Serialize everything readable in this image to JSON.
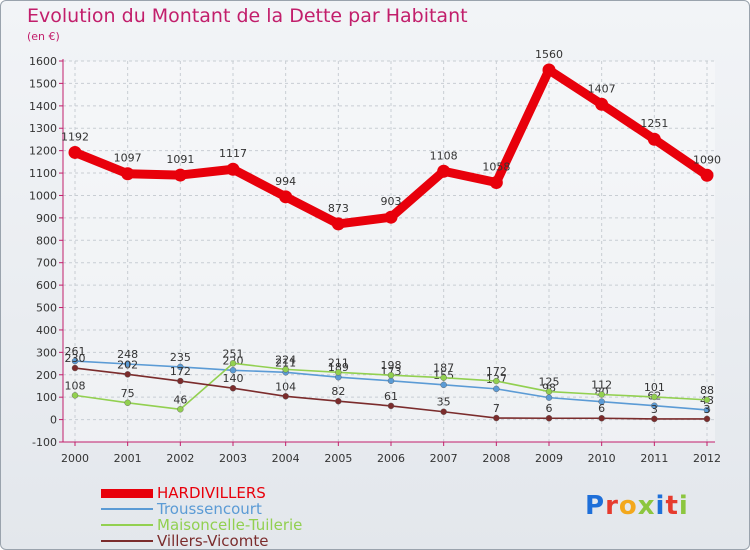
{
  "chart_data": {
    "type": "line",
    "title": "Evolution du Montant de la Dette par Habitant",
    "subtitle": "(en €)",
    "x": [
      "2000",
      "2001",
      "2002",
      "2003",
      "2004",
      "2005",
      "2006",
      "2007",
      "2008",
      "2009",
      "2010",
      "2011",
      "2012"
    ],
    "ylim": [
      -100,
      1600
    ],
    "yticks": [
      -100,
      0,
      100,
      200,
      300,
      400,
      500,
      600,
      700,
      800,
      900,
      1000,
      1100,
      1200,
      1300,
      1400,
      1500,
      1600
    ],
    "grid": true,
    "series": [
      {
        "name": "HARDIVILLERS",
        "color": "#e8000b",
        "values": [
          1192,
          1097,
          1091,
          1117,
          994,
          873,
          903,
          1108,
          1058,
          1560,
          1407,
          1251,
          1090
        ],
        "labels": [
          "1192",
          "1097",
          "1091",
          "1117",
          "994",
          "873",
          "903",
          "1108",
          "1058",
          "1560",
          "1407",
          "1251",
          "1090"
        ]
      },
      {
        "name": "Troussencourt",
        "color": "#5b9bd5",
        "values": [
          261,
          248,
          235,
          220,
          211,
          189,
          173,
          155,
          137,
          98,
          80,
          62,
          43
        ],
        "labels": [
          "261",
          "248",
          "235",
          "220",
          "211",
          "189",
          "173",
          "155",
          "137",
          "98",
          "80",
          "62",
          "43"
        ]
      },
      {
        "name": "Maisoncelle-Tuilerie",
        "color": "#92d050",
        "values": [
          108,
          75,
          46,
          251,
          224,
          211,
          198,
          187,
          172,
          125,
          112,
          101,
          88
        ],
        "labels": [
          "108",
          "75",
          "46",
          "251",
          "224",
          "211",
          "198",
          "187",
          "172",
          "125",
          "112",
          "101",
          "88"
        ]
      },
      {
        "name": "Villers-Vicomte",
        "color": "#7b2c2c",
        "values": [
          230,
          202,
          172,
          140,
          104,
          82,
          61,
          35,
          7,
          6,
          6,
          3,
          3
        ],
        "labels": [
          "230",
          "202",
          "172",
          "140",
          "104",
          "82",
          "61",
          "35",
          "7",
          "6",
          "6",
          "3",
          "3"
        ]
      }
    ]
  },
  "logo": {
    "text": "Proxiti",
    "letter_colors": [
      "#1e6fd9",
      "#e63b2e",
      "#f3a81c",
      "#8cc63f",
      "#1e6fd9",
      "#e63b2e",
      "#8cc63f"
    ]
  }
}
